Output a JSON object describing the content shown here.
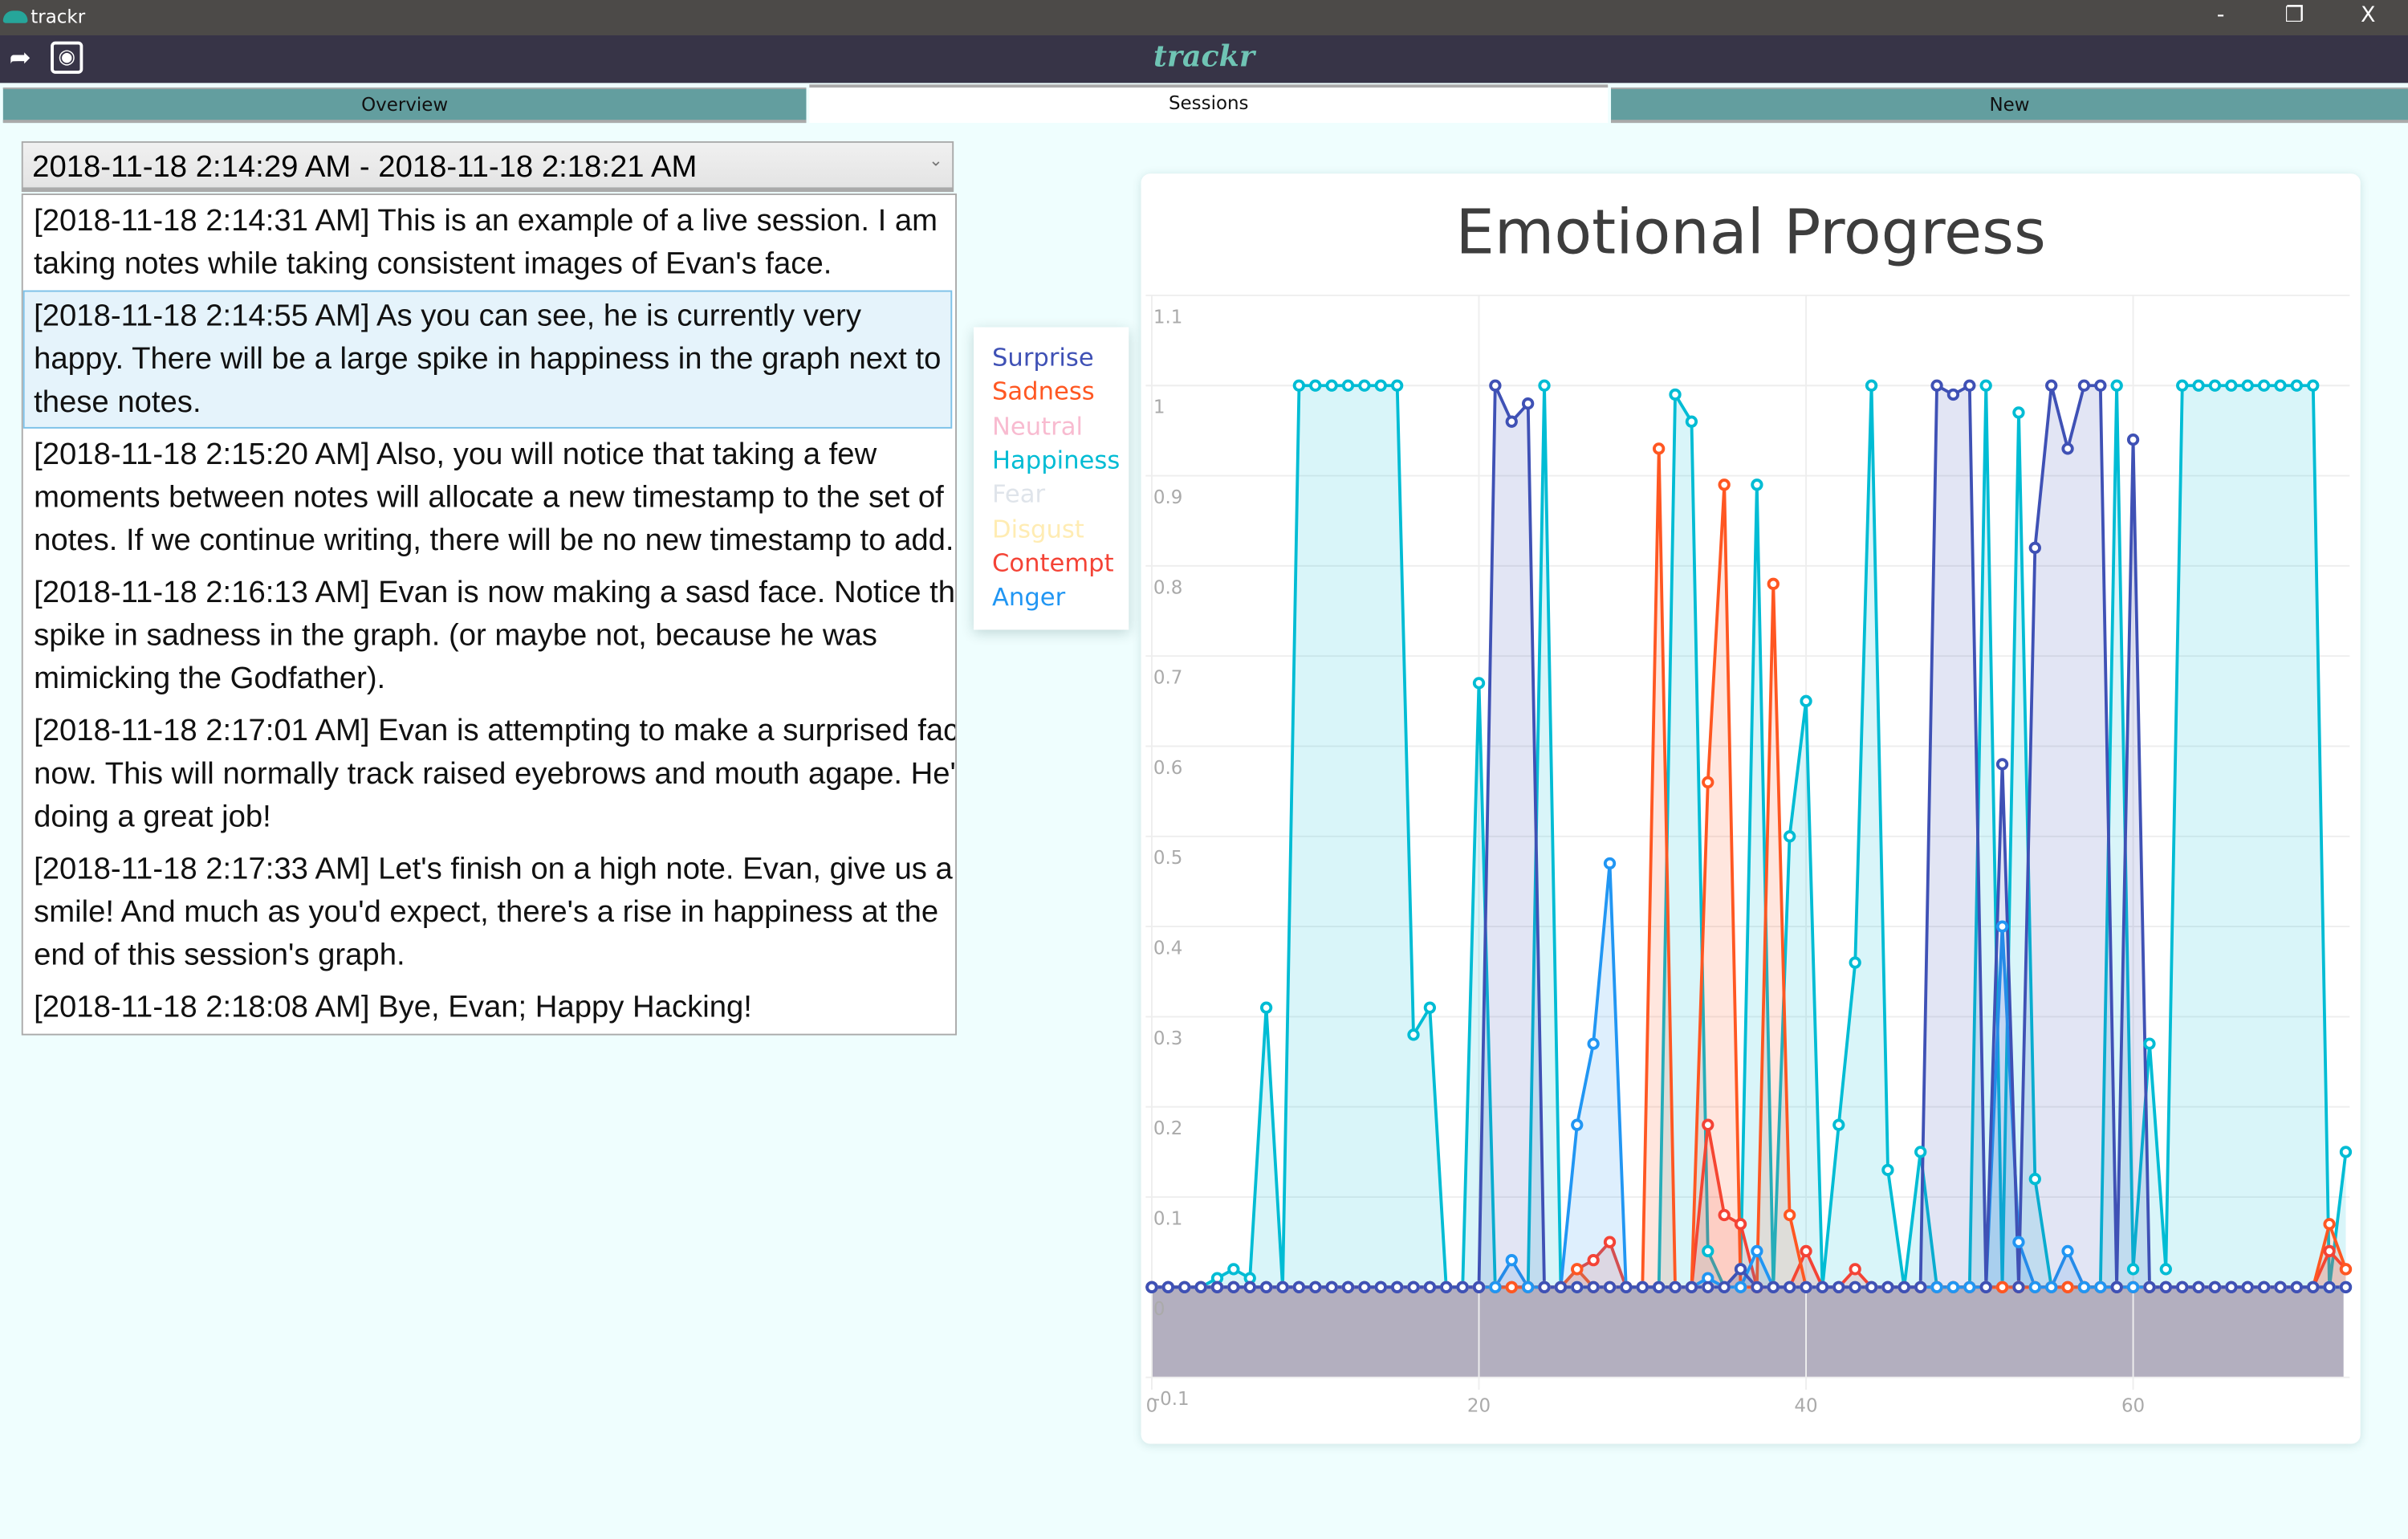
{
  "window": {
    "title": "trackr",
    "minimize": "-",
    "restore": "❐",
    "close": "X"
  },
  "header": {
    "brand": "trackr",
    "back_icon": "back-arrow-icon",
    "camera_icon": "camera-icon"
  },
  "tabs": [
    {
      "label": "Overview"
    },
    {
      "label": "Sessions"
    },
    {
      "label": "New"
    }
  ],
  "session_select": {
    "value": "2018-11-18 2:14:29 AM - 2018-11-18 2:18:21 AM",
    "chevron": "⌄"
  },
  "notes": [
    {
      "text": "[2018-11-18 2:14:31 AM]  This is an example of a live session. I am taking notes while taking consistent images of Evan's face."
    },
    {
      "text": "[2018-11-18 2:14:55 AM]  As you can see, he is currently very happy. There will be a large spike in happiness in the graph next to these notes."
    },
    {
      "text": "[2018-11-18 2:15:20 AM]  Also, you will notice that taking a few moments between notes will allocate a new timestamp to the set of notes. If we continue writing, there will be no new timestamp to add."
    },
    {
      "text": "[2018-11-18 2:16:13 AM]  Evan is now making a sasd face. Notice the spike in sadness in the graph. (or maybe not, because he was mimicking the Godfather)."
    },
    {
      "text": "[2018-11-18 2:17:01 AM]  Evan is attempting to make a surprised face now. This will normally track raised eyebrows and mouth agape. He's doing a great job!"
    },
    {
      "text": "[2018-11-18 2:17:33 AM]  Let's finish on a high note. Evan, give us a smile! And much as you'd expect, there's a rise in happiness at the end of this session's graph."
    },
    {
      "text": "[2018-11-18 2:18:08 AM]  Bye, Evan; Happy Hacking!"
    }
  ],
  "chart_data": {
    "type": "area",
    "title": "Emotional Progress",
    "xlabel": "",
    "ylabel": "",
    "xlim": [
      0,
      73
    ],
    "ylim": [
      -0.1,
      1.1
    ],
    "xticks": [
      "0",
      "20",
      "40",
      "60"
    ],
    "yticks": [
      "1.1",
      "1",
      "0.9",
      "0.8",
      "0.7",
      "0.6",
      "0.5",
      "0.4",
      "0.3",
      "0.2",
      "0.1",
      "0",
      "-0.1"
    ],
    "legend_position": "left",
    "series": [
      {
        "name": "Neutral",
        "color": "#f8bbd0",
        "values": [
          0,
          0,
          0,
          0,
          0,
          0,
          0,
          0,
          0,
          0,
          0,
          0,
          0,
          0,
          0,
          0,
          0,
          0,
          0,
          0,
          0,
          0,
          0,
          0,
          0,
          0,
          0,
          0,
          0,
          0,
          0,
          0,
          0,
          0,
          0,
          0,
          0,
          0,
          0,
          0,
          0,
          0,
          0,
          0,
          0,
          0,
          0,
          0,
          0,
          0,
          0,
          0,
          0,
          0,
          0,
          0,
          0,
          0,
          0,
          0,
          0,
          0,
          0,
          0,
          0,
          0,
          0,
          0,
          0,
          0,
          0,
          0,
          0,
          0
        ]
      },
      {
        "name": "Fear",
        "color": "#dfe4ea",
        "values": [
          0,
          0,
          0,
          0,
          0,
          0,
          0,
          0,
          0,
          0,
          0,
          0,
          0,
          0,
          0,
          0,
          0,
          0,
          0,
          0,
          0,
          0,
          0,
          0,
          0,
          0,
          0,
          0,
          0,
          0,
          0,
          0,
          0,
          0,
          0,
          0,
          0,
          0,
          0,
          0,
          0,
          0,
          0,
          0,
          0,
          0,
          0,
          0,
          0,
          0,
          0,
          0,
          0,
          0,
          0,
          0,
          0,
          0,
          0,
          0,
          0,
          0,
          0,
          0,
          0,
          0,
          0,
          0,
          0,
          0,
          0,
          0,
          0,
          0
        ]
      },
      {
        "name": "Disgust",
        "color": "#ffecb3",
        "values": [
          0,
          0,
          0,
          0,
          0,
          0,
          0,
          0,
          0,
          0,
          0,
          0,
          0,
          0,
          0,
          0,
          0,
          0,
          0,
          0,
          0,
          0,
          0,
          0,
          0,
          0,
          0,
          0,
          0,
          0,
          0,
          0,
          0,
          0,
          0,
          0,
          0,
          0,
          0,
          0,
          0,
          0,
          0,
          0,
          0,
          0,
          0,
          0,
          0,
          0,
          0,
          0,
          0,
          0,
          0,
          0,
          0,
          0,
          0,
          0,
          0,
          0,
          0,
          0,
          0,
          0,
          0,
          0,
          0,
          0,
          0,
          0,
          0,
          0
        ]
      },
      {
        "name": "Happiness",
        "color": "#00bcd4",
        "values": [
          0,
          0,
          0,
          0,
          0.01,
          0.02,
          0.01,
          0.31,
          0,
          1,
          1,
          1,
          1,
          1,
          1,
          1,
          0.28,
          0.31,
          0,
          0,
          0.67,
          0,
          0,
          0,
          1,
          0,
          0,
          0,
          0,
          0,
          0,
          0,
          0.99,
          0.96,
          0.04,
          0,
          0.02,
          0.89,
          0,
          0.5,
          0.65,
          0,
          0.18,
          0.36,
          1,
          0.13,
          0,
          0.15,
          0,
          0,
          0,
          1,
          0,
          0.97,
          0.12,
          0,
          0,
          0,
          0,
          1,
          0.02,
          0.27,
          0.02,
          1,
          1,
          1,
          1,
          1,
          1,
          1,
          1,
          1,
          0,
          0.15
        ]
      },
      {
        "name": "Contempt",
        "color": "#f44336",
        "values": [
          0,
          0,
          0,
          0,
          0,
          0,
          0,
          0,
          0,
          0,
          0,
          0,
          0,
          0,
          0,
          0,
          0,
          0,
          0,
          0,
          0,
          0,
          0,
          0,
          0,
          0,
          0.02,
          0.03,
          0.05,
          0,
          0,
          0,
          0,
          0,
          0.18,
          0.08,
          0.07,
          0,
          0,
          0,
          0.04,
          0,
          0,
          0.02,
          0,
          0,
          0,
          0,
          0,
          0,
          0,
          0,
          0,
          0,
          0,
          0,
          0,
          0,
          0,
          0,
          0,
          0,
          0,
          0,
          0,
          0,
          0,
          0,
          0,
          0,
          0,
          0,
          0.04,
          0.02
        ]
      },
      {
        "name": "Sadness",
        "color": "#ff5722",
        "values": [
          0,
          0,
          0,
          0,
          0,
          0,
          0,
          0,
          0,
          0,
          0,
          0,
          0,
          0,
          0,
          0,
          0,
          0,
          0,
          0,
          0,
          0,
          0,
          0,
          0,
          0,
          0.02,
          0,
          0,
          0,
          0,
          0.93,
          0,
          0,
          0.56,
          0.89,
          0,
          0,
          0.78,
          0.08,
          0,
          0,
          0,
          0,
          0,
          0,
          0,
          0,
          0,
          0,
          0,
          0,
          0,
          0,
          0,
          0,
          0,
          0,
          0,
          0,
          0,
          0,
          0,
          0,
          0,
          0,
          0,
          0,
          0,
          0,
          0,
          0,
          0.07,
          0.02
        ]
      },
      {
        "name": "Anger",
        "color": "#2196f3",
        "values": [
          0,
          0,
          0,
          0,
          0,
          0,
          0,
          0,
          0,
          0,
          0,
          0,
          0,
          0,
          0,
          0,
          0,
          0,
          0,
          0,
          0,
          0,
          0.03,
          0,
          0,
          0,
          0.18,
          0.27,
          0.47,
          0,
          0,
          0,
          0,
          0,
          0.01,
          0,
          0,
          0.04,
          0,
          0,
          0,
          0,
          0,
          0,
          0,
          0,
          0,
          0,
          0,
          0,
          0,
          0,
          0.4,
          0.05,
          0,
          0,
          0.04,
          0,
          0,
          0,
          0,
          0,
          0,
          0,
          0,
          0,
          0,
          0,
          0,
          0,
          0,
          0,
          0,
          0
        ]
      },
      {
        "name": "Surprise",
        "color": "#3f51b5",
        "values": [
          0,
          0,
          0,
          0,
          0,
          0,
          0,
          0,
          0,
          0,
          0,
          0,
          0,
          0,
          0,
          0,
          0,
          0,
          0,
          0,
          0,
          1,
          0.96,
          0.98,
          0,
          0,
          0,
          0,
          0,
          0,
          0,
          0,
          0,
          0,
          0,
          0,
          0.02,
          0,
          0,
          0,
          0,
          0,
          0,
          0,
          0,
          0,
          0,
          0,
          1,
          0.99,
          1,
          0,
          0.58,
          0,
          0.82,
          1,
          0.93,
          1,
          1,
          0,
          0.94,
          0,
          0,
          0,
          0,
          0,
          0,
          0,
          0,
          0,
          0,
          0,
          0,
          0
        ]
      }
    ],
    "legend_order": [
      "Surprise",
      "Sadness",
      "Neutral",
      "Happiness",
      "Fear",
      "Disgust",
      "Contempt",
      "Anger"
    ]
  }
}
